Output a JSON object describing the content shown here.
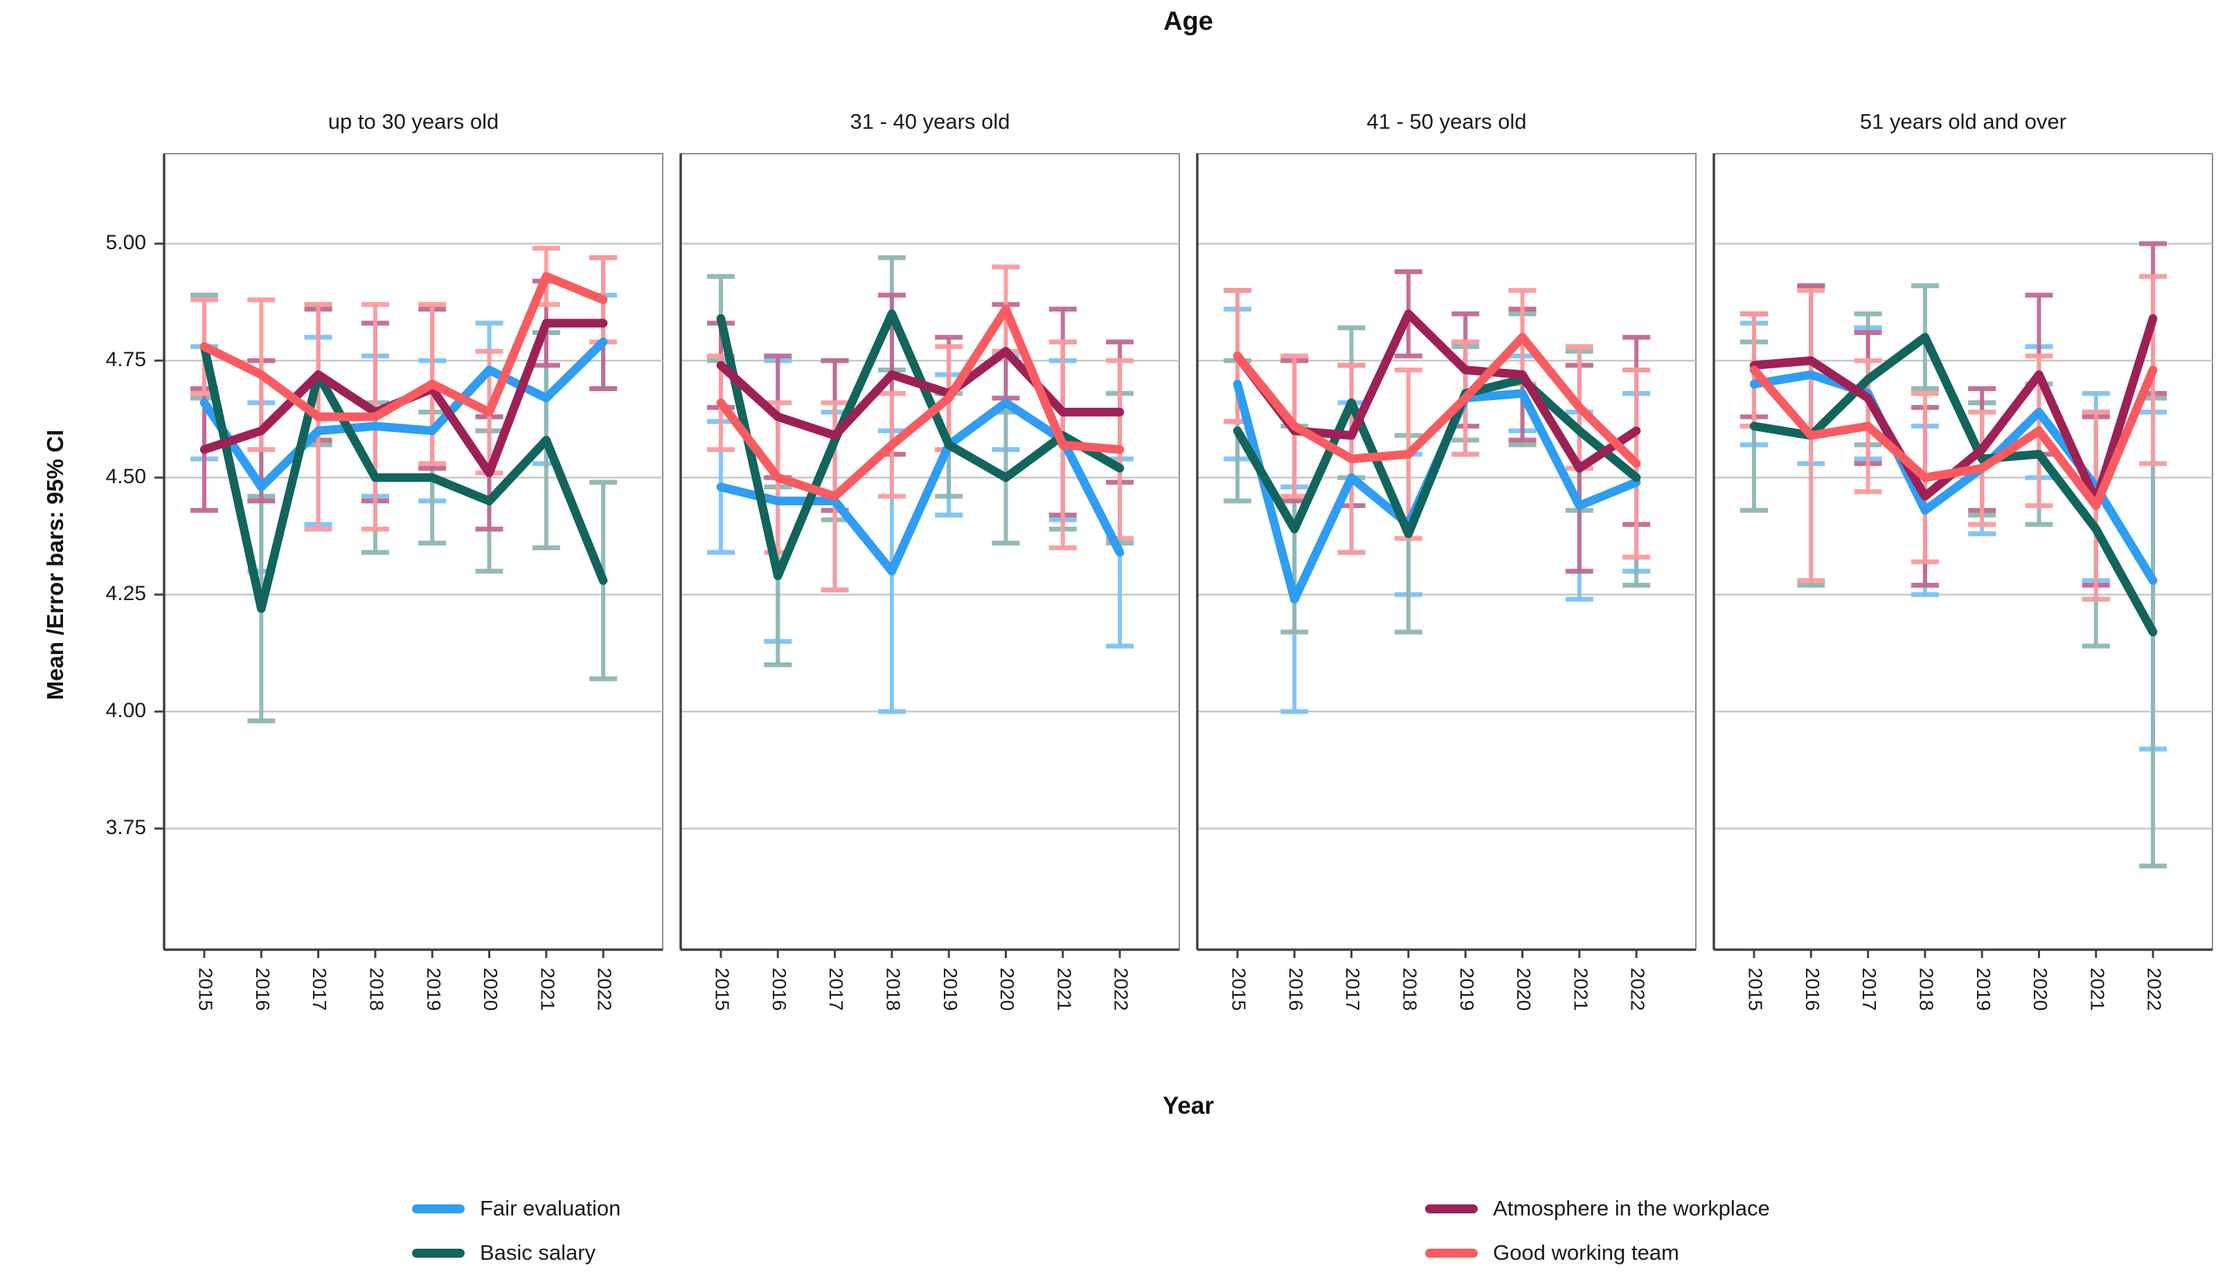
{
  "title": "Age",
  "y_axis": {
    "label": "Mean /Error bars: 95% CI",
    "ticks": [
      "5.00",
      "4.75",
      "4.50",
      "4.25",
      "4.00",
      "3.75"
    ],
    "tick_values": [
      5.0,
      4.75,
      4.5,
      4.25,
      4.0,
      3.75
    ]
  },
  "x_axis": {
    "label": "Year",
    "years": [
      "2015",
      "2016",
      "2017",
      "2018",
      "2019",
      "2020",
      "2021",
      "2022"
    ]
  },
  "colors": {
    "fair_evaluation": {
      "main": "#2E9DF3",
      "light": "#7CC2F7"
    },
    "basic_salary": {
      "main": "#11655C",
      "light": "#8FB7B3"
    },
    "atmosphere": {
      "main": "#9E2155",
      "light": "#C06A92"
    },
    "good_team": {
      "main": "#F95B60",
      "light": "#FB9B9E"
    }
  },
  "legend": {
    "items": [
      {
        "label": "Fair evaluation",
        "color_key": "fair_evaluation"
      },
      {
        "label": "Basic salary",
        "color_key": "basic_salary"
      },
      {
        "label": "Atmosphere in the workplace",
        "color_key": "atmosphere"
      },
      {
        "label": "Good working team",
        "color_key": "good_team"
      }
    ]
  },
  "chart_data": {
    "type": "line",
    "x": [
      "2015",
      "2016",
      "2017",
      "2018",
      "2019",
      "2020",
      "2021",
      "2022"
    ],
    "ylabel": "Mean /Error bars: 95% CI",
    "xlabel": "Year",
    "ylim": [
      3.49,
      5.19
    ],
    "grid": true,
    "error_bars": "95% CI",
    "panels": [
      {
        "label": "up to 30 years old",
        "series": [
          {
            "name": "Fair evaluation",
            "color_key": "fair_evaluation",
            "values": [
              4.66,
              4.48,
              4.6,
              4.61,
              4.6,
              4.73,
              4.67,
              4.79
            ],
            "ci_low": [
              4.54,
              4.3,
              4.4,
              4.46,
              4.45,
              4.63,
              4.53,
              4.69
            ],
            "ci_high": [
              4.78,
              4.66,
              4.8,
              4.76,
              4.75,
              4.83,
              4.81,
              4.89
            ]
          },
          {
            "name": "Basic salary",
            "color_key": "basic_salary",
            "values": [
              4.78,
              4.22,
              4.72,
              4.5,
              4.5,
              4.45,
              4.58,
              4.28
            ],
            "ci_low": [
              4.67,
              3.98,
              4.57,
              4.34,
              4.36,
              4.3,
              4.35,
              4.07
            ],
            "ci_high": [
              4.89,
              4.46,
              4.87,
              4.66,
              4.64,
              4.6,
              4.81,
              4.49
            ]
          },
          {
            "name": "Atmosphere in the workplace",
            "color_key": "atmosphere",
            "values": [
              4.56,
              4.6,
              4.72,
              4.64,
              4.69,
              4.51,
              4.83,
              4.83
            ],
            "ci_low": [
              4.43,
              4.45,
              4.58,
              4.45,
              4.52,
              4.39,
              4.74,
              4.69
            ],
            "ci_high": [
              4.69,
              4.75,
              4.86,
              4.83,
              4.86,
              4.63,
              4.92,
              4.97
            ]
          },
          {
            "name": "Good working team",
            "color_key": "good_team",
            "values": [
              4.78,
              4.72,
              4.63,
              4.63,
              4.7,
              4.64,
              4.93,
              4.88
            ],
            "ci_low": [
              4.68,
              4.56,
              4.39,
              4.39,
              4.53,
              4.51,
              4.87,
              4.79
            ],
            "ci_high": [
              4.88,
              4.88,
              4.87,
              4.87,
              4.87,
              4.77,
              4.99,
              4.97
            ]
          }
        ]
      },
      {
        "label": "31 - 40 years old",
        "series": [
          {
            "name": "Fair evaluation",
            "color_key": "fair_evaluation",
            "values": [
              4.48,
              4.45,
              4.45,
              4.3,
              4.57,
              4.66,
              4.58,
              4.34
            ],
            "ci_low": [
              4.34,
              4.15,
              4.26,
              4.0,
              4.42,
              4.56,
              4.41,
              4.14
            ],
            "ci_high": [
              4.62,
              4.75,
              4.64,
              4.6,
              4.72,
              4.76,
              4.75,
              4.54
            ]
          },
          {
            "name": "Basic salary",
            "color_key": "basic_salary",
            "values": [
              4.84,
              4.29,
              4.58,
              4.85,
              4.57,
              4.5,
              4.59,
              4.52
            ],
            "ci_low": [
              4.75,
              4.1,
              4.41,
              4.73,
              4.46,
              4.36,
              4.39,
              4.36
            ],
            "ci_high": [
              4.93,
              4.48,
              4.75,
              4.97,
              4.68,
              4.64,
              4.79,
              4.68
            ]
          },
          {
            "name": "Atmosphere in the workplace",
            "color_key": "atmosphere",
            "values": [
              4.74,
              4.63,
              4.59,
              4.72,
              4.68,
              4.77,
              4.64,
              4.64
            ],
            "ci_low": [
              4.65,
              4.5,
              4.43,
              4.55,
              4.56,
              4.67,
              4.42,
              4.49
            ],
            "ci_high": [
              4.83,
              4.76,
              4.75,
              4.89,
              4.8,
              4.87,
              4.86,
              4.79
            ]
          },
          {
            "name": "Good working team",
            "color_key": "good_team",
            "values": [
              4.66,
              4.5,
              4.46,
              4.57,
              4.67,
              4.86,
              4.57,
              4.56
            ],
            "ci_low": [
              4.56,
              4.34,
              4.26,
              4.46,
              4.56,
              4.77,
              4.35,
              4.37
            ],
            "ci_high": [
              4.76,
              4.66,
              4.66,
              4.68,
              4.78,
              4.95,
              4.79,
              4.75
            ]
          }
        ]
      },
      {
        "label": "41 - 50 years old",
        "series": [
          {
            "name": "Fair evaluation",
            "color_key": "fair_evaluation",
            "values": [
              4.7,
              4.24,
              4.5,
              4.4,
              4.67,
              4.68,
              4.44,
              4.49
            ],
            "ci_low": [
              4.54,
              4.0,
              4.34,
              4.25,
              4.55,
              4.6,
              4.24,
              4.3
            ],
            "ci_high": [
              4.86,
              4.48,
              4.66,
              4.55,
              4.79,
              4.76,
              4.64,
              4.68
            ]
          },
          {
            "name": "Basic salary",
            "color_key": "basic_salary",
            "values": [
              4.6,
              4.39,
              4.66,
              4.38,
              4.68,
              4.71,
              4.6,
              4.5
            ],
            "ci_low": [
              4.45,
              4.17,
              4.5,
              4.17,
              4.58,
              4.57,
              4.43,
              4.27
            ],
            "ci_high": [
              4.75,
              4.61,
              4.82,
              4.59,
              4.78,
              4.85,
              4.77,
              4.73
            ]
          },
          {
            "name": "Atmosphere in the workplace",
            "color_key": "atmosphere",
            "values": [
              4.76,
              4.6,
              4.59,
              4.85,
              4.73,
              4.72,
              4.52,
              4.6
            ],
            "ci_low": [
              4.62,
              4.45,
              4.44,
              4.76,
              4.61,
              4.58,
              4.3,
              4.4
            ],
            "ci_high": [
              4.9,
              4.75,
              4.74,
              4.94,
              4.85,
              4.86,
              4.74,
              4.8
            ]
          },
          {
            "name": "Good working team",
            "color_key": "good_team",
            "values": [
              4.76,
              4.61,
              4.54,
              4.55,
              4.67,
              4.8,
              4.65,
              4.53
            ],
            "ci_low": [
              4.62,
              4.46,
              4.34,
              4.37,
              4.55,
              4.7,
              4.52,
              4.33
            ],
            "ci_high": [
              4.9,
              4.76,
              4.74,
              4.73,
              4.79,
              4.9,
              4.78,
              4.73
            ]
          }
        ]
      },
      {
        "label": "51 years old and over",
        "series": [
          {
            "name": "Fair evaluation",
            "color_key": "fair_evaluation",
            "values": [
              4.7,
              4.72,
              4.68,
              4.43,
              4.52,
              4.64,
              4.48,
              4.28
            ],
            "ci_low": [
              4.57,
              4.53,
              4.54,
              4.25,
              4.38,
              4.5,
              4.28,
              3.92
            ],
            "ci_high": [
              4.83,
              4.91,
              4.82,
              4.61,
              4.66,
              4.78,
              4.68,
              4.64
            ]
          },
          {
            "name": "Basic salary",
            "color_key": "basic_salary",
            "values": [
              4.61,
              4.59,
              4.71,
              4.8,
              4.54,
              4.55,
              4.39,
              4.17
            ],
            "ci_low": [
              4.43,
              4.27,
              4.57,
              4.69,
              4.42,
              4.4,
              4.14,
              3.67
            ],
            "ci_high": [
              4.79,
              4.91,
              4.85,
              4.91,
              4.66,
              4.7,
              4.64,
              4.67
            ]
          },
          {
            "name": "Atmosphere in the workplace",
            "color_key": "atmosphere",
            "values": [
              4.74,
              4.75,
              4.67,
              4.46,
              4.56,
              4.72,
              4.45,
              4.84
            ],
            "ci_low": [
              4.63,
              4.59,
              4.53,
              4.27,
              4.43,
              4.55,
              4.27,
              4.68
            ],
            "ci_high": [
              4.85,
              4.91,
              4.81,
              4.65,
              4.69,
              4.89,
              4.63,
              5.0
            ]
          },
          {
            "name": "Good working team",
            "color_key": "good_team",
            "values": [
              4.73,
              4.59,
              4.61,
              4.5,
              4.52,
              4.6,
              4.44,
              4.73
            ],
            "ci_low": [
              4.61,
              4.28,
              4.47,
              4.32,
              4.4,
              4.44,
              4.24,
              4.53
            ],
            "ci_high": [
              4.85,
              4.9,
              4.75,
              4.68,
              4.64,
              4.76,
              4.64,
              4.93
            ]
          }
        ]
      }
    ]
  }
}
